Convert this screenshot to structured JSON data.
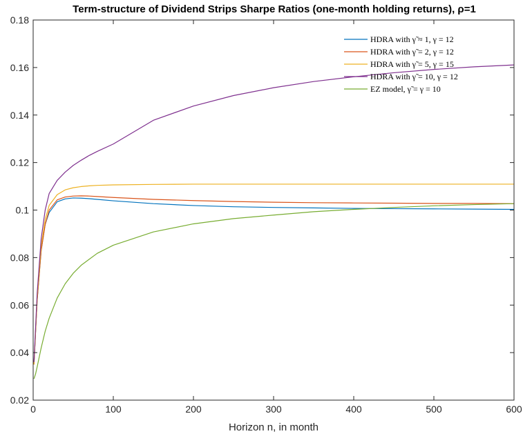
{
  "chart_data": {
    "type": "line",
    "title": "Term-structure of Dividend Strips Sharpe Ratios (one-month holding returns), ρ=1",
    "xlabel": "Horizon n, in month",
    "ylabel": "",
    "xlim": [
      0,
      600
    ],
    "ylim": [
      0.02,
      0.18
    ],
    "xticks": [
      0,
      100,
      200,
      300,
      400,
      500,
      600
    ],
    "xtick_labels": [
      "0",
      "100",
      "200",
      "300",
      "400",
      "500",
      "600"
    ],
    "yticks": [
      0.02,
      0.04,
      0.06,
      0.08,
      0.1,
      0.12,
      0.14,
      0.16,
      0.18
    ],
    "ytick_labels": [
      "0.02",
      "0.04",
      "0.06",
      "0.08",
      "0.1",
      "0.12",
      "0.14",
      "0.16",
      "0.18"
    ],
    "grid": false,
    "legend_position": "top-right",
    "series": [
      {
        "name": "HDRA with γ̃ ≈ 1, γ = 12",
        "color": "#0072BD",
        "x": [
          1,
          5,
          10,
          15,
          20,
          30,
          40,
          50,
          60,
          70,
          80,
          100,
          150,
          200,
          250,
          300,
          350,
          400,
          450,
          500,
          550,
          600
        ],
        "y": [
          0.035,
          0.062,
          0.083,
          0.094,
          0.099,
          0.1035,
          0.1047,
          0.1051,
          0.105,
          0.1048,
          0.1045,
          0.1039,
          0.1027,
          0.1019,
          0.1014,
          0.1011,
          0.1009,
          0.1007,
          0.1006,
          0.1005,
          0.1004,
          0.1003
        ]
      },
      {
        "name": "HDRA with γ̃ = 2, γ = 12",
        "color": "#D95319",
        "x": [
          1,
          5,
          10,
          15,
          20,
          30,
          40,
          50,
          60,
          70,
          80,
          100,
          150,
          200,
          250,
          300,
          350,
          400,
          450,
          500,
          550,
          600
        ],
        "y": [
          0.035,
          0.062,
          0.083,
          0.094,
          0.1,
          0.1043,
          0.1055,
          0.1059,
          0.106,
          0.1059,
          0.1057,
          0.1053,
          0.1045,
          0.104,
          0.1036,
          0.1033,
          0.1031,
          0.103,
          0.1029,
          0.1028,
          0.1028,
          0.1027
        ]
      },
      {
        "name": "HDRA with γ̃ = 5, γ = 15",
        "color": "#EDB120",
        "x": [
          1,
          5,
          10,
          15,
          20,
          30,
          40,
          50,
          60,
          70,
          80,
          100,
          150,
          200,
          250,
          300,
          350,
          400,
          450,
          500,
          550,
          600
        ],
        "y": [
          0.035,
          0.063,
          0.085,
          0.096,
          0.102,
          0.1065,
          0.1085,
          0.1094,
          0.1099,
          0.1102,
          0.1104,
          0.1106,
          0.1108,
          0.1109,
          0.1109,
          0.1109,
          0.1109,
          0.1109,
          0.1109,
          0.1109,
          0.1109,
          0.1109
        ]
      },
      {
        "name": "HDRA with γ̃ = 10, γ = 12",
        "color": "#7E2F8E",
        "x": [
          1,
          5,
          10,
          15,
          20,
          30,
          40,
          50,
          60,
          70,
          80,
          100,
          150,
          200,
          250,
          300,
          350,
          400,
          450,
          500,
          550,
          600
        ],
        "y": [
          0.036,
          0.065,
          0.088,
          0.1,
          0.107,
          0.1125,
          0.116,
          0.1188,
          0.121,
          0.123,
          0.1247,
          0.1278,
          0.1378,
          0.1438,
          0.1482,
          0.1515,
          0.1541,
          0.1561,
          0.1578,
          0.1592,
          0.1603,
          0.1611
        ]
      },
      {
        "name": "EZ model, γ̃ = γ = 10",
        "color": "#77AC30",
        "x": [
          1,
          3,
          5,
          10,
          15,
          20,
          30,
          40,
          50,
          60,
          80,
          100,
          150,
          200,
          250,
          300,
          350,
          400,
          450,
          500,
          550,
          600
        ],
        "y": [
          0.029,
          0.031,
          0.034,
          0.042,
          0.049,
          0.0545,
          0.063,
          0.069,
          0.0734,
          0.0768,
          0.0818,
          0.0852,
          0.0908,
          0.0942,
          0.0964,
          0.0979,
          0.0993,
          0.1003,
          0.1011,
          0.1018,
          0.1023,
          0.1027
        ]
      }
    ]
  }
}
